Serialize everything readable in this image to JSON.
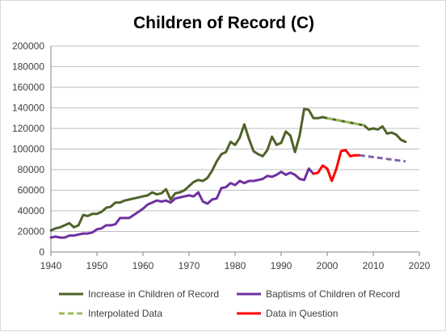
{
  "chart_data": {
    "type": "line",
    "title": "Children of Record (C)",
    "xlabel": "",
    "ylabel": "",
    "xlim": [
      1940,
      2020
    ],
    "ylim": [
      0,
      200000
    ],
    "x_ticks": [
      "1940",
      "1950",
      "1960",
      "1970",
      "1980",
      "1990",
      "2000",
      "2010",
      "2020"
    ],
    "y_ticks": [
      "0",
      "20000",
      "40000",
      "60000",
      "80000",
      "100000",
      "120000",
      "140000",
      "160000",
      "180000",
      "200000"
    ],
    "grid": "horizontal",
    "legend_position": "bottom",
    "series": [
      {
        "name": "Increase in Children of Record",
        "color": "#4f6228",
        "style": "solid",
        "x": [
          1940,
          1941,
          1942,
          1943,
          1944,
          1945,
          1946,
          1947,
          1948,
          1949,
          1950,
          1951,
          1952,
          1953,
          1954,
          1955,
          1956,
          1957,
          1958,
          1959,
          1960,
          1961,
          1962,
          1963,
          1964,
          1965,
          1966,
          1967,
          1968,
          1969,
          1970,
          1971,
          1972,
          1973,
          1974,
          1975,
          1976,
          1977,
          1978,
          1979,
          1980,
          1981,
          1982,
          1983,
          1984,
          1985,
          1986,
          1987,
          1988,
          1989,
          1990,
          1991,
          1992,
          1993,
          1994,
          1995,
          1996,
          1997,
          1998,
          1999,
          2000,
          2008,
          2009,
          2010,
          2011,
          2012,
          2013,
          2014,
          2015,
          2016,
          2017
        ],
        "values": [
          21000,
          23000,
          24000,
          26000,
          28000,
          24000,
          26000,
          36000,
          35000,
          37000,
          37000,
          39000,
          43000,
          44000,
          48000,
          48000,
          50000,
          51000,
          52000,
          53000,
          54000,
          55000,
          58000,
          56000,
          57000,
          61000,
          51000,
          57000,
          58000,
          60000,
          64000,
          68000,
          70000,
          69000,
          72000,
          79000,
          88000,
          95000,
          97000,
          107000,
          104000,
          111000,
          124000,
          110000,
          98000,
          95000,
          93000,
          99000,
          112000,
          104000,
          106000,
          117000,
          113000,
          97000,
          113000,
          139000,
          138000,
          130000,
          130000,
          131000,
          130000,
          123000,
          119000,
          120000,
          119000,
          122000,
          115000,
          116000,
          114000,
          109000,
          107000
        ]
      },
      {
        "name": "Baptisms of Children of Record",
        "color": "#7030a0",
        "style": "solid",
        "x": [
          1940,
          1941,
          1942,
          1943,
          1944,
          1945,
          1946,
          1947,
          1948,
          1949,
          1950,
          1951,
          1952,
          1953,
          1954,
          1955,
          1956,
          1957,
          1958,
          1959,
          1960,
          1961,
          1962,
          1963,
          1964,
          1965,
          1966,
          1967,
          1968,
          1969,
          1970,
          1971,
          1972,
          1973,
          1974,
          1975,
          1976,
          1977,
          1978,
          1979,
          1980,
          1981,
          1982,
          1983,
          1984,
          1985,
          1986,
          1987,
          1988,
          1989,
          1990,
          1991,
          1992,
          1993,
          1994,
          1995,
          1996,
          1997
        ],
        "values": [
          14000,
          15000,
          14000,
          14000,
          16000,
          16000,
          17000,
          18000,
          18000,
          19000,
          22000,
          23000,
          26000,
          26000,
          27000,
          33000,
          33000,
          33000,
          36000,
          39000,
          42000,
          46000,
          48000,
          50000,
          49000,
          50000,
          48000,
          52000,
          53000,
          54000,
          55000,
          54000,
          58000,
          49000,
          47000,
          51000,
          52000,
          62000,
          63000,
          67000,
          65000,
          69000,
          67000,
          69000,
          69000,
          70000,
          71000,
          74000,
          73000,
          75000,
          78000,
          75000,
          77000,
          75000,
          71000,
          70000,
          81000,
          76000
        ]
      },
      {
        "name": "Interpolated Data",
        "color": "#9bbb59",
        "style": "dashed",
        "x": [
          2000,
          2008
        ],
        "values": [
          130000,
          123000
        ]
      },
      {
        "name": "Data in Question",
        "color": "#ff0000",
        "style": "solid",
        "x": [
          1997,
          1998,
          1999,
          2000,
          2001,
          2002,
          2003,
          2004,
          2005,
          2006,
          2007
        ],
        "values": [
          76000,
          77000,
          84000,
          81000,
          69000,
          81000,
          98000,
          99000,
          93000,
          94000,
          94000
        ]
      },
      {
        "name": "",
        "color": "#8064a2",
        "style": "dashed",
        "x": [
          2007,
          2017
        ],
        "values": [
          94000,
          88000
        ]
      }
    ]
  }
}
